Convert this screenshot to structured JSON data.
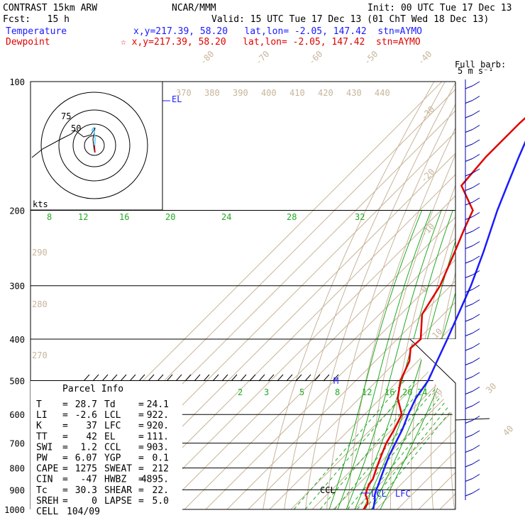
{
  "header": {
    "title_left": "CONTRAST 15km ARW",
    "center": "NCAR/MMM",
    "init": "Init: 00 UTC Tue 17 Dec 13",
    "fcst": "Fcst:   15 h",
    "valid": "Valid: 15 UTC Tue 17 Dec 13 (01 ChT Wed 18 Dec 13)",
    "temperature_label": "Temperature",
    "temperature_info": "x,y=217.39, 58.20   lat,lon= -2.05, 147.42  stn=AYMO",
    "dewpoint_label": "Dewpoint",
    "dewpoint_info": "☆ x,y=217.39, 58.20   lat,lon= -2.05, 147.42  stn=AYMO"
  },
  "colors": {
    "temperature": "#1a1aff",
    "dewpoint": "#e00000",
    "isotherm": "#c8b49a",
    "mixing_ratio": "#22aa22",
    "moist_adiabat": "#22aa22"
  },
  "chart_data": {
    "type": "line",
    "chart_kind": "skew-T log-P sounding",
    "y_axis": {
      "scale": "log",
      "unit": "hPa",
      "range": [
        1000,
        100
      ],
      "ticks": [
        "100",
        "200",
        "300",
        "400",
        "500",
        "600",
        "700",
        "800",
        "900",
        "1000"
      ]
    },
    "isotherm_labels": [
      "-80",
      "-70",
      "-60",
      "-50",
      "-40",
      "-30",
      "-20",
      "-10",
      "0",
      "10",
      "20",
      "30",
      "40"
    ],
    "theta_labels": [
      "370",
      "380",
      "390",
      "400",
      "410",
      "420",
      "430",
      "440"
    ],
    "theta_left_labels": [
      "290",
      "280",
      "270"
    ],
    "mixing_ratio_labels_top": [
      "8",
      "12",
      "16",
      "20",
      "24",
      "28",
      "32"
    ],
    "mixing_ratio_labels_bottom": [
      "2",
      "3",
      "5",
      "8",
      "12",
      "16",
      "20",
      "24"
    ],
    "series": [
      {
        "name": "Temperature",
        "color": "#1a1aff",
        "pressure": [
          1000,
          950,
          925,
          900,
          875,
          850,
          800,
          750,
          700,
          650,
          600,
          550,
          500,
          450,
          400,
          350,
          300,
          250,
          200,
          175,
          150,
          125,
          100
        ],
        "temp": [
          28.7,
          25,
          22.6,
          20.9,
          19.5,
          17.8,
          14.5,
          11.0,
          8.0,
          4.8,
          0.5,
          -3.5,
          -6.0,
          -11.0,
          -16.5,
          -23.0,
          -30.5,
          -40.5,
          -53.5,
          -60.5,
          -68.5,
          -77.5,
          -83.5
        ]
      },
      {
        "name": "Dewpoint",
        "color": "#e00000",
        "pressure": [
          1000,
          970,
          950,
          925,
          900,
          875,
          850,
          800,
          750,
          700,
          650,
          600,
          550,
          500,
          450,
          420,
          400,
          350,
          300,
          250,
          220,
          200,
          175,
          150,
          125,
          100
        ],
        "temp": [
          24.1,
          23.4,
          21.5,
          18.3,
          16.5,
          15.0,
          14.3,
          10.8,
          7.3,
          3.7,
          1.0,
          -2.5,
          -12.0,
          -19.0,
          -24.0,
          -29.5,
          -29.0,
          -40.0,
          -45.0,
          -54.0,
          -60.5,
          -65.0,
          -82.0,
          -84.0,
          -84.0,
          -82.0
        ]
      }
    ],
    "markers": [
      {
        "label": "EL",
        "pressure": 111
      },
      {
        "label": "M",
        "pressure": 500
      },
      {
        "label": "CCL",
        "pressure": 903
      },
      {
        "label": "LCL",
        "pressure": 922
      },
      {
        "label": "LFC",
        "pressure": 920
      }
    ],
    "hodograph": {
      "unit_label": "kts",
      "ring_labels": [
        "75",
        "50"
      ]
    },
    "wind_barbs_title": "Full barb:\n5 m s⁻¹",
    "parcel_info": {
      "title": "Parcel Info",
      "rows": [
        [
          "T",
          "28.7",
          "Td",
          "24.1"
        ],
        [
          "LI",
          "-2.6",
          "LCL",
          "922."
        ],
        [
          "K",
          "37",
          "LFC",
          "920."
        ],
        [
          "TT",
          "42",
          "EL",
          "111."
        ],
        [
          "SWI",
          "1.2",
          "CCL",
          "903."
        ],
        [
          "PW",
          "6.07",
          "YGP",
          "0.1"
        ],
        [
          "CAPE",
          "1275",
          "SWEAT",
          "212"
        ],
        [
          "CIN",
          "-47",
          "HWBZ",
          "4895."
        ],
        [
          "Tc",
          "30.3",
          "SHEAR",
          "22."
        ],
        [
          "SREH",
          "0",
          "LAPSE",
          "5.0"
        ],
        [
          "CELL",
          "104/09",
          "",
          ""
        ]
      ]
    }
  }
}
